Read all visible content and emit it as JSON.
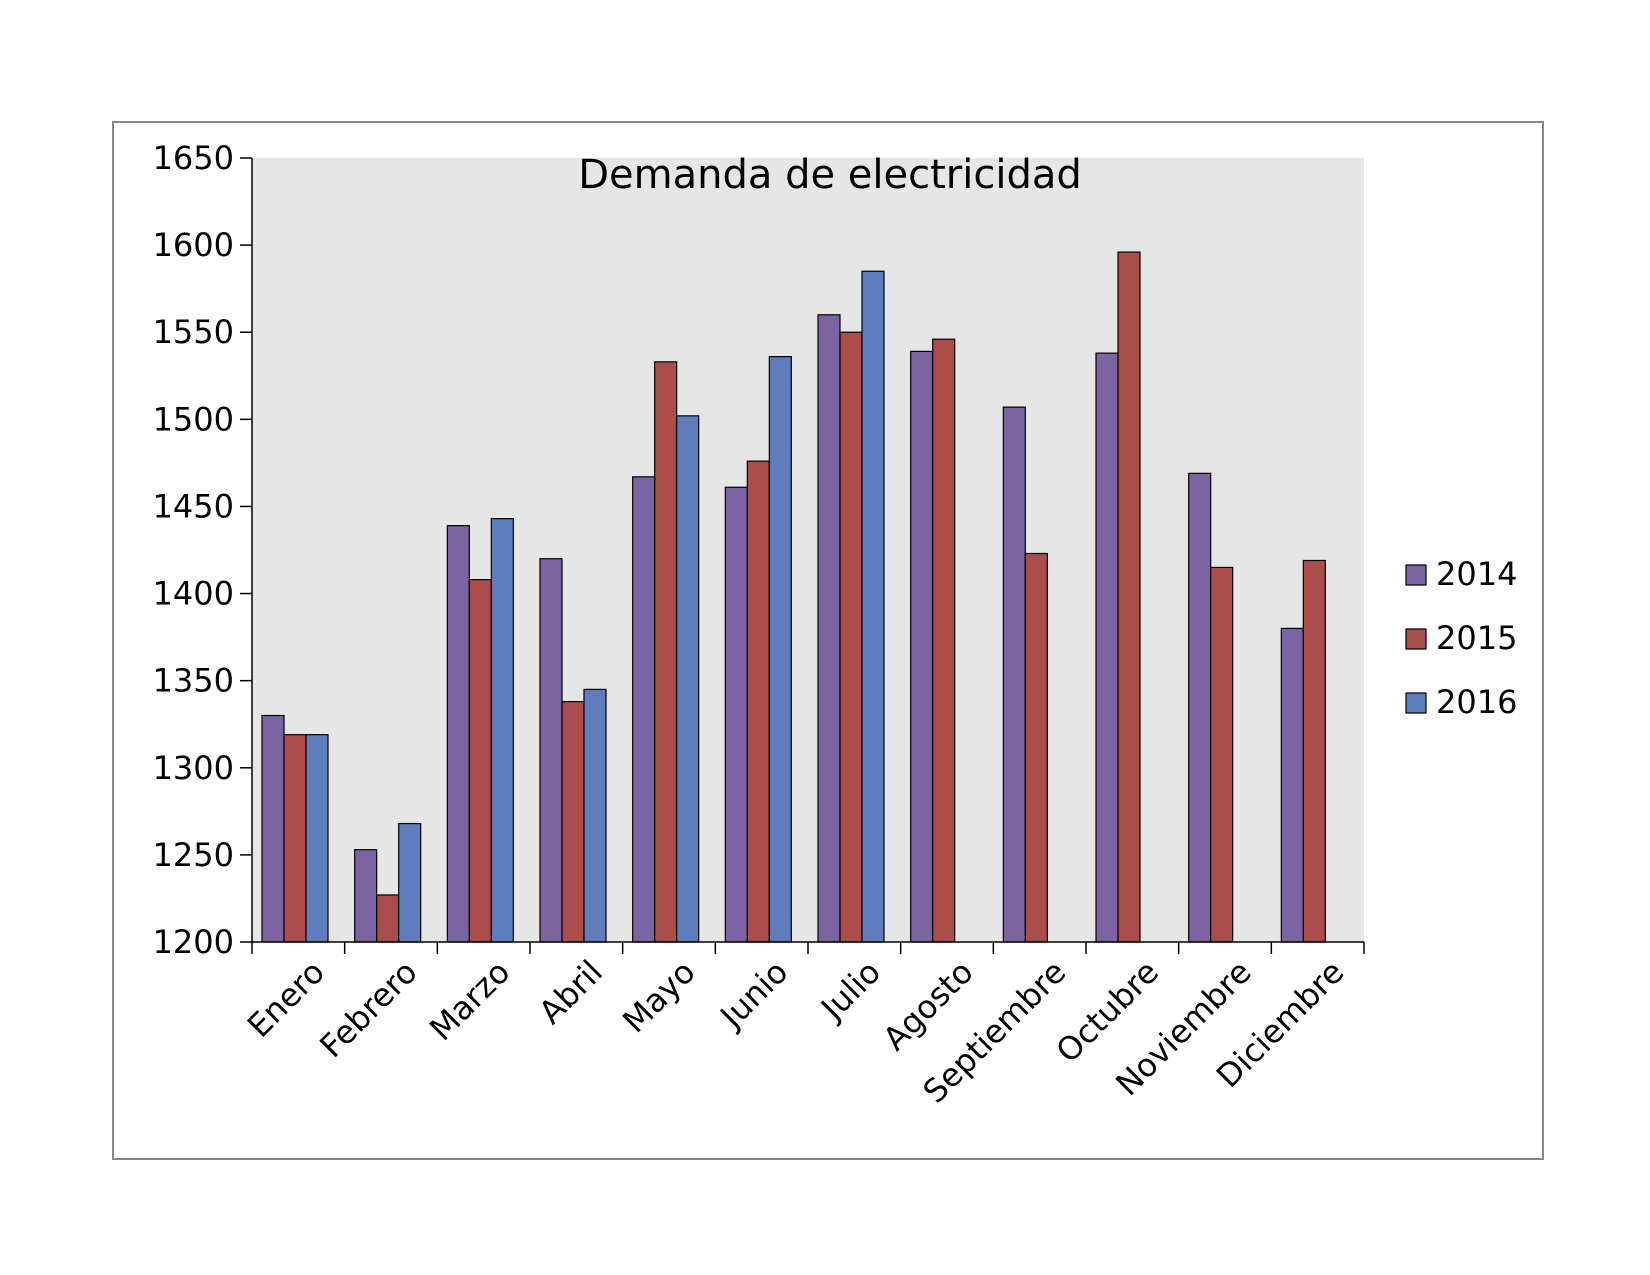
{
  "chart_data": {
    "type": "bar",
    "title": "Demanda de electricidad",
    "xlabel": "",
    "ylabel": "",
    "ylim": [
      1200,
      1650
    ],
    "yticks": [
      1200,
      1250,
      1300,
      1350,
      1400,
      1450,
      1500,
      1550,
      1600,
      1650
    ],
    "grid": false,
    "legend_position": "right",
    "categories": [
      "Enero",
      "Febrero",
      "Marzo",
      "Abril",
      "Mayo",
      "Junio",
      "Julio",
      "Agosto",
      "Septiembre",
      "Octubre",
      "Noviembre",
      "Diciembre"
    ],
    "series": [
      {
        "name": "2014",
        "color": "#7B64A1",
        "values": [
          1330,
          1253,
          1439,
          1420,
          1467,
          1461,
          1560,
          1539,
          1507,
          1538,
          1469,
          1380
        ]
      },
      {
        "name": "2015",
        "color": "#AB4D4B",
        "values": [
          1319,
          1227,
          1408,
          1338,
          1533,
          1476,
          1550,
          1546,
          1423,
          1596,
          1415,
          1419
        ]
      },
      {
        "name": "2016",
        "color": "#5F7DBD",
        "values": [
          1319,
          1268,
          1443,
          1345,
          1502,
          1536,
          1585,
          null,
          null,
          null,
          null,
          null
        ]
      }
    ],
    "plot_background": "#E6E6E6"
  }
}
